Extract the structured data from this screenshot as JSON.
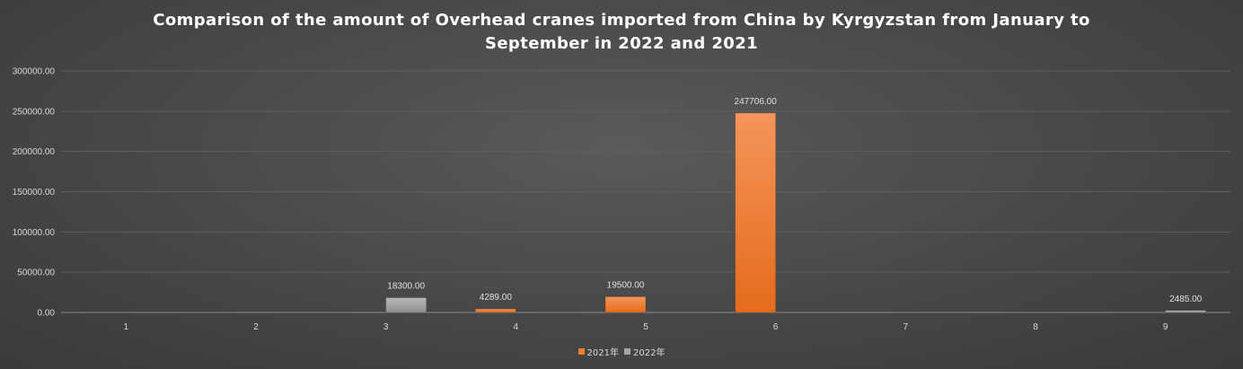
{
  "title_lines": [
    "Comparison of the amount of Overhead cranes imported from China by Kyrgyzstan from January to",
    "September in 2022 and 2021"
  ],
  "chart_data": {
    "type": "bar",
    "title": "Comparison of the amount of Overhead cranes imported from China by Kyrgyzstan from January to September in 2022 and 2021",
    "categories": [
      "1",
      "2",
      "3",
      "4",
      "5",
      "6",
      "7",
      "8",
      "9"
    ],
    "series": [
      {
        "name": "2021年",
        "color": "#ed7d31",
        "values": [
          null,
          null,
          null,
          4289.0,
          19500.0,
          247706.0,
          null,
          null,
          null
        ],
        "value_labels": [
          "",
          "",
          "",
          "4289.00",
          "19500.00",
          "247706.00",
          "",
          "",
          ""
        ]
      },
      {
        "name": "2022年",
        "color": "#a5a5a5",
        "values": [
          null,
          null,
          18300.0,
          null,
          null,
          null,
          null,
          null,
          2485.0
        ],
        "value_labels": [
          "",
          "",
          "18300.00",
          "",
          "",
          "",
          "",
          "",
          "2485.00"
        ]
      }
    ],
    "ylim": [
      0,
      300000
    ],
    "yticks": [
      "0.00",
      "50000.00",
      "100000.00",
      "150000.00",
      "200000.00",
      "250000.00",
      "300000.00"
    ],
    "ytick_values": [
      0,
      50000,
      100000,
      150000,
      200000,
      250000,
      300000
    ],
    "xlabel": "",
    "ylabel": "",
    "grid": true,
    "legend_position": "bottom"
  }
}
